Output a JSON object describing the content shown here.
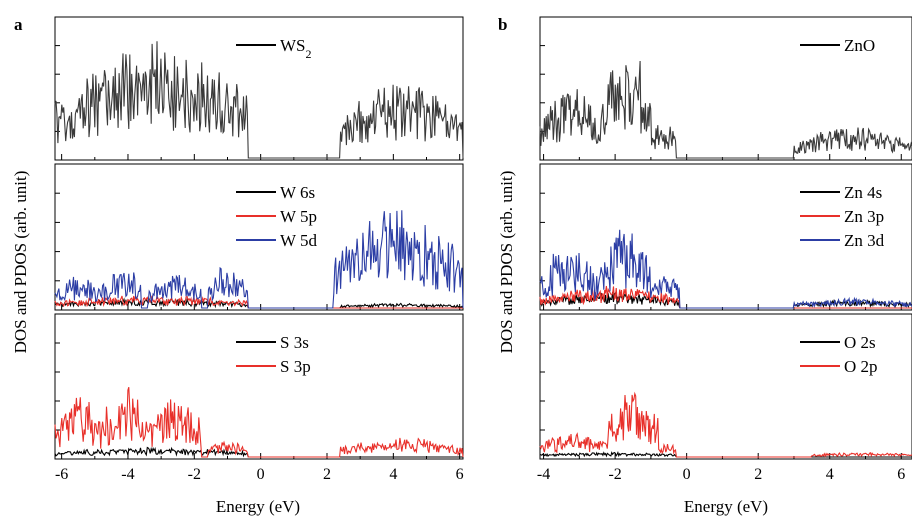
{
  "chart_data": [
    {
      "type": "line",
      "panel_label": "a",
      "xlabel": "Energy (eV)",
      "ylabel": "DOS and PDOS (arb. unit)",
      "xlim": [
        -6.2,
        6.1
      ],
      "x_ticks": [
        "-6",
        "-4",
        "-2",
        "0",
        "2",
        "4",
        "6"
      ],
      "x_tick_values": [
        -6,
        -4,
        -2,
        0,
        2,
        4,
        6
      ],
      "subplots": [
        {
          "legend": [
            {
              "label": "WS",
              "sub": "2",
              "color": "#000000"
            }
          ],
          "series": [
            {
              "name": "WS2",
              "color": "#3a3a3a",
              "values_by_band": [
                {
                  "x": [
                    -6.2,
                    -5.8,
                    -5.6,
                    -5.4,
                    -5.2,
                    -5.0,
                    -4.8,
                    -4.6,
                    -4.4,
                    -4.2,
                    -4.0,
                    -3.8,
                    -3.6,
                    -3.4,
                    -3.2,
                    -3.0,
                    -2.8,
                    -2.6,
                    -2.4,
                    -2.2,
                    -2.0,
                    -1.8,
                    -1.6,
                    -1.4,
                    -1.2,
                    -1.0,
                    -0.8,
                    -0.6,
                    -0.4
                  ],
                  "y": [
                    0.3,
                    0.45,
                    0.6,
                    0.95,
                    0.5,
                    0.45,
                    0.3,
                    0.35,
                    0.6,
                    0.8,
                    0.5,
                    0.45,
                    0.3,
                    0.4,
                    0.7,
                    0.65,
                    0.55,
                    0.7,
                    0.6,
                    0.45,
                    0.6,
                    0.55,
                    0.45,
                    0.5,
                    0.35,
                    0.3,
                    0.25,
                    0.15,
                    0.0
                  ]
                },
                {
                  "x": [
                    2.4,
                    2.6,
                    2.8,
                    3.0,
                    3.2,
                    3.4,
                    3.6,
                    3.8,
                    4.0,
                    4.2,
                    4.4,
                    4.6,
                    4.8,
                    5.0,
                    5.2,
                    5.4,
                    5.6,
                    5.8,
                    6.0
                  ],
                  "y": [
                    0.2,
                    0.4,
                    0.55,
                    0.65,
                    0.6,
                    0.7,
                    0.55,
                    0.6,
                    0.5,
                    0.45,
                    0.35,
                    0.3,
                    0.2,
                    0.15,
                    0.3,
                    0.4,
                    0.35,
                    0.3,
                    0.3
                  ]
                }
              ]
            }
          ]
        },
        {
          "legend": [
            {
              "label": "W 6s",
              "color": "#000000"
            },
            {
              "label": "W 5p",
              "color": "#e8302a"
            },
            {
              "label": "W 5d",
              "color": "#2c3ea5"
            }
          ],
          "series": [
            {
              "name": "W 6s",
              "color": "#000000"
            },
            {
              "name": "W 5p",
              "color": "#e8302a"
            },
            {
              "name": "W 5d",
              "color": "#2c3ea5"
            }
          ]
        },
        {
          "legend": [
            {
              "label": "S 3s",
              "color": "#000000"
            },
            {
              "label": "S 3p",
              "color": "#e8302a"
            }
          ],
          "series": [
            {
              "name": "S 3s",
              "color": "#000000"
            },
            {
              "name": "S 3p",
              "color": "#e8302a"
            }
          ]
        }
      ]
    },
    {
      "type": "line",
      "panel_label": "b",
      "xlabel": "Energy (eV)",
      "ylabel": "DOS and PDOS (arb. unit)",
      "xlim": [
        -4.1,
        6.3
      ],
      "x_ticks": [
        "-4",
        "-2",
        "0",
        "2",
        "4",
        "6"
      ],
      "x_tick_values": [
        -4,
        -2,
        0,
        2,
        4,
        6
      ],
      "subplots": [
        {
          "legend": [
            {
              "label": "ZnO",
              "color": "#000000"
            }
          ],
          "series": [
            {
              "name": "ZnO",
              "color": "#3a3a3a"
            }
          ]
        },
        {
          "legend": [
            {
              "label": "Zn 4s",
              "color": "#000000"
            },
            {
              "label": "Zn 3p",
              "color": "#e8302a"
            },
            {
              "label": "Zn 3d",
              "color": "#2c3ea5"
            }
          ],
          "series": [
            {
              "name": "Zn 4s",
              "color": "#000000"
            },
            {
              "name": "Zn 3p",
              "color": "#e8302a"
            },
            {
              "name": "Zn 3d",
              "color": "#2c3ea5"
            }
          ]
        },
        {
          "legend": [
            {
              "label": "O 2s",
              "color": "#000000"
            },
            {
              "label": "O 2p",
              "color": "#e8302a"
            }
          ],
          "series": [
            {
              "name": "O 2s",
              "color": "#000000"
            },
            {
              "name": "O 2p",
              "color": "#e8302a"
            }
          ]
        }
      ]
    }
  ]
}
